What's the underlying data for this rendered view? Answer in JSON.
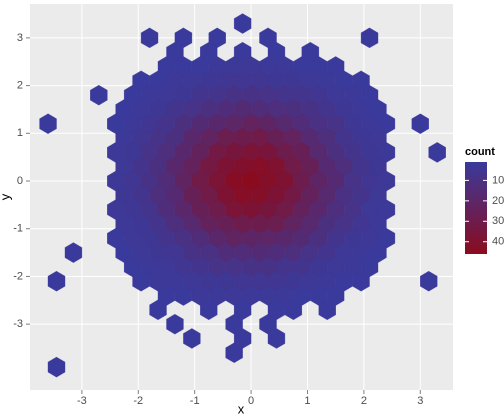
{
  "chart_data": {
    "type": "hexbin",
    "x_label": "x",
    "y_label": "y",
    "legend_title": "count",
    "xlim": [
      -3.92,
      3.58
    ],
    "ylim": [
      -4.38,
      3.71
    ],
    "xticks": [
      -3,
      -2,
      -1,
      0,
      1,
      2,
      3
    ],
    "yticks": [
      -3,
      -2,
      -1,
      0,
      1,
      2,
      3
    ],
    "grid": true,
    "hex_width": 0.3,
    "low_color": "#3a3a9c",
    "high_color": "#8b0b1e",
    "legend_ticks": [
      10,
      20,
      30,
      40
    ],
    "legend_position": "right",
    "rows": [
      {
        "y": 3.3,
        "x": [
          -0.15
        ],
        "count": [
          1
        ]
      },
      {
        "y": 3.0,
        "x": [
          -1.8,
          -1.2,
          -0.6,
          0.3,
          2.1
        ],
        "count": [
          1,
          1,
          1,
          1,
          1
        ]
      },
      {
        "y": 2.7,
        "x": [
          -1.35,
          -0.75,
          -0.15,
          0.45,
          1.05
        ],
        "count": [
          1,
          1,
          1,
          1,
          1
        ]
      },
      {
        "y": 2.4,
        "x": [
          -1.5,
          -1.2,
          -0.9,
          -0.6,
          -0.3,
          0,
          0.3,
          0.6,
          0.9,
          1.2,
          1.5
        ],
        "count": [
          1,
          1,
          1,
          2,
          2,
          3,
          2,
          2,
          1,
          1,
          1
        ]
      },
      {
        "y": 2.1,
        "x": [
          -1.95,
          -1.65,
          -1.35,
          -1.05,
          -0.75,
          -0.45,
          -0.15,
          0.15,
          0.45,
          0.75,
          1.05,
          1.35,
          1.65,
          1.95
        ],
        "count": [
          1,
          1,
          2,
          3,
          4,
          5,
          5,
          5,
          4,
          4,
          3,
          2,
          1,
          1
        ]
      },
      {
        "y": 1.8,
        "x": [
          -2.7,
          -2.1,
          -1.8,
          -1.5,
          -1.2,
          -0.9,
          -0.6,
          -0.3,
          0,
          0.3,
          0.6,
          0.9,
          1.2,
          1.5,
          1.8,
          2.1
        ],
        "count": [
          1,
          1,
          2,
          3,
          4,
          6,
          7,
          9,
          9,
          8,
          7,
          6,
          5,
          3,
          2,
          1
        ]
      },
      {
        "y": 1.5,
        "x": [
          -2.25,
          -1.95,
          -1.65,
          -1.35,
          -1.05,
          -0.75,
          -0.45,
          -0.15,
          0.15,
          0.45,
          0.75,
          1.05,
          1.35,
          1.65,
          1.95,
          2.25
        ],
        "count": [
          1,
          2,
          4,
          6,
          8,
          11,
          13,
          15,
          14,
          12,
          11,
          9,
          6,
          4,
          2,
          1
        ]
      },
      {
        "y": 1.2,
        "x": [
          -3.6,
          -2.4,
          -2.1,
          -1.8,
          -1.5,
          -1.2,
          -0.9,
          -0.6,
          -0.3,
          0,
          0.3,
          0.6,
          0.9,
          1.2,
          1.5,
          1.8,
          2.1,
          2.4,
          3.0
        ],
        "count": [
          1,
          1,
          2,
          5,
          7,
          11,
          15,
          18,
          20,
          23,
          21,
          17,
          14,
          10,
          8,
          4,
          2,
          1,
          1
        ]
      },
      {
        "y": 0.9,
        "x": [
          -2.25,
          -1.95,
          -1.65,
          -1.35,
          -1.05,
          -0.75,
          -0.45,
          -0.15,
          0.15,
          0.45,
          0.75,
          1.05,
          1.35,
          1.65,
          1.95,
          2.25
        ],
        "count": [
          2,
          5,
          8,
          11,
          18,
          22,
          28,
          29,
          31,
          26,
          23,
          16,
          12,
          7,
          4,
          3
        ]
      },
      {
        "y": 0.6,
        "x": [
          -2.4,
          -2.1,
          -1.8,
          -1.5,
          -1.2,
          -0.9,
          -0.6,
          -0.3,
          0,
          0.3,
          0.6,
          0.9,
          1.2,
          1.5,
          1.8,
          2.1,
          2.4,
          3.3
        ],
        "count": [
          2,
          4,
          8,
          12,
          18,
          24,
          32,
          35,
          37,
          36,
          30,
          26,
          17,
          11,
          7,
          4,
          2,
          1
        ]
      },
      {
        "y": 0.3,
        "x": [
          -2.25,
          -1.95,
          -1.65,
          -1.35,
          -1.05,
          -0.75,
          -0.45,
          -0.15,
          0.15,
          0.45,
          0.75,
          1.05,
          1.35,
          1.65,
          1.95,
          2.25
        ],
        "count": [
          3,
          7,
          11,
          18,
          24,
          33,
          38,
          41,
          43,
          40,
          31,
          26,
          16,
          12,
          6,
          4
        ]
      },
      {
        "y": 0,
        "x": [
          -2.4,
          -2.1,
          -1.8,
          -1.5,
          -1.2,
          -0.9,
          -0.6,
          -0.3,
          0,
          0.3,
          0.6,
          0.9,
          1.2,
          1.5,
          1.8,
          2.1,
          2.4
        ],
        "count": [
          3,
          5,
          9,
          14,
          22,
          31,
          37,
          44,
          46,
          42,
          39,
          29,
          21,
          16,
          8,
          5,
          3
        ]
      },
      {
        "y": -0.3,
        "x": [
          -2.25,
          -1.95,
          -1.65,
          -1.35,
          -1.05,
          -0.75,
          -0.45,
          -0.15,
          0.15,
          0.45,
          0.75,
          1.05,
          1.35,
          1.65,
          1.95,
          2.25
        ],
        "count": [
          4,
          6,
          12,
          16,
          26,
          31,
          39,
          43,
          42,
          38,
          32,
          24,
          17,
          10,
          7,
          3
        ]
      },
      {
        "y": -0.6,
        "x": [
          -2.4,
          -2.1,
          -1.8,
          -1.5,
          -1.2,
          -0.9,
          -0.6,
          -0.3,
          0,
          0.3,
          0.6,
          0.9,
          1.2,
          1.5,
          1.8,
          2.1,
          2.4
        ],
        "count": [
          3,
          4,
          7,
          13,
          19,
          26,
          30,
          37,
          38,
          35,
          31,
          24,
          18,
          12,
          8,
          3,
          2
        ]
      },
      {
        "y": -0.9,
        "x": [
          -2.25,
          -1.95,
          -1.65,
          -1.35,
          -1.05,
          -0.75,
          -0.45,
          -0.15,
          0.15,
          0.45,
          0.75,
          1.05,
          1.35,
          1.65,
          1.95,
          2.25
        ],
        "count": [
          3,
          4,
          7,
          12,
          17,
          24,
          26,
          30,
          29,
          28,
          22,
          17,
          11,
          8,
          5,
          2
        ]
      },
      {
        "y": -1.2,
        "x": [
          -2.4,
          -2.1,
          -1.8,
          -1.5,
          -1.2,
          -0.9,
          -0.6,
          -0.3,
          0,
          0.3,
          0.6,
          0.9,
          1.2,
          1.5,
          1.8,
          2.1,
          2.4
        ],
        "count": [
          1,
          3,
          4,
          7,
          10,
          14,
          19,
          22,
          21,
          20,
          18,
          15,
          11,
          6,
          4,
          3,
          1
        ]
      },
      {
        "y": -1.5,
        "x": [
          -3.15,
          -2.25,
          -1.95,
          -1.65,
          -1.35,
          -1.05,
          -0.75,
          -0.45,
          -0.15,
          0.15,
          0.45,
          0.75,
          1.05,
          1.35,
          1.65,
          1.95,
          2.25
        ],
        "count": [
          1,
          1,
          3,
          4,
          5,
          9,
          10,
          14,
          14,
          15,
          13,
          12,
          8,
          6,
          3,
          2,
          1
        ]
      },
      {
        "y": -1.8,
        "x": [
          -2.1,
          -1.8,
          -1.5,
          -1.2,
          -0.9,
          -0.6,
          -0.3,
          0,
          0.3,
          0.6,
          0.9,
          1.2,
          1.5,
          1.8,
          2.1
        ],
        "count": [
          1,
          2,
          3,
          5,
          6,
          8,
          8,
          9,
          9,
          7,
          6,
          4,
          3,
          2,
          1
        ]
      },
      {
        "y": -2.1,
        "x": [
          -3.45,
          -1.95,
          -1.65,
          -1.35,
          -1.05,
          -0.75,
          -0.45,
          -0.15,
          0.15,
          0.45,
          0.75,
          1.05,
          1.35,
          1.65,
          1.95,
          3.15
        ],
        "count": [
          1,
          1,
          2,
          2,
          3,
          4,
          4,
          5,
          5,
          5,
          4,
          3,
          2,
          1,
          1,
          1
        ]
      },
      {
        "y": -2.4,
        "x": [
          -1.5,
          -1.2,
          -0.9,
          -0.6,
          -0.3,
          0,
          0.3,
          0.6,
          0.9,
          1.2,
          1.5
        ],
        "count": [
          1,
          1,
          2,
          2,
          3,
          2,
          2,
          2,
          1,
          1,
          1
        ]
      },
      {
        "y": -2.7,
        "x": [
          -1.65,
          -0.75,
          -0.15,
          0.45,
          0.75,
          1.35
        ],
        "count": [
          1,
          1,
          1,
          1,
          1,
          1
        ]
      },
      {
        "y": -3.0,
        "x": [
          -1.35,
          -0.3,
          0.3
        ],
        "count": [
          1,
          1,
          1
        ]
      },
      {
        "y": -3.3,
        "x": [
          -1.05,
          -0.15,
          0.45
        ],
        "count": [
          1,
          1,
          1
        ]
      },
      {
        "y": -3.6,
        "x": [
          -0.3
        ],
        "count": [
          1
        ]
      },
      {
        "y": -3.9,
        "x": [
          -3.45
        ],
        "count": [
          1
        ]
      }
    ]
  }
}
